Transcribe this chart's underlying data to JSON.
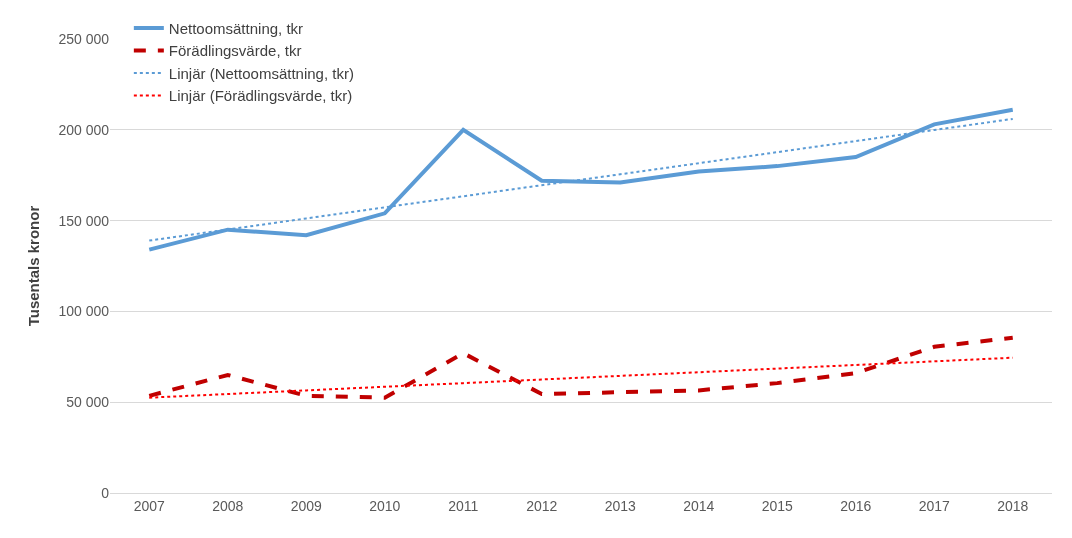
{
  "chart_data": {
    "type": "line",
    "ylabel": "Tusentals kronor",
    "categories": [
      "2007",
      "2008",
      "2009",
      "2010",
      "2011",
      "2012",
      "2013",
      "2014",
      "2015",
      "2016",
      "2017",
      "2018"
    ],
    "series": [
      {
        "name": "Nettoomsättning, tkr",
        "color": "#5b9bd5",
        "line_style": "solid",
        "values": [
          134000,
          145000,
          142000,
          154000,
          200000,
          172000,
          171000,
          177000,
          180000,
          185000,
          203000,
          211000
        ]
      },
      {
        "name": "Förädlingsvärde, tkr",
        "color": "#c00000",
        "line_style": "dashed",
        "values": [
          53500,
          65000,
          53500,
          52500,
          77000,
          54500,
          55500,
          56500,
          60500,
          66000,
          80500,
          85500
        ]
      },
      {
        "name": "Linjär (Nettoomsättning, tkr)",
        "color": "#5b9bd5",
        "line_style": "dotted",
        "values": [
          139000,
          145100,
          151200,
          157300,
          163400,
          169500,
          175500,
          181600,
          187700,
          193800,
          199900,
          206000
        ]
      },
      {
        "name": "Linjär (Förädlingsvärde, tkr)",
        "color": "#ff0000",
        "line_style": "dotted",
        "values": [
          52500,
          54500,
          56500,
          58500,
          60500,
          62500,
          64500,
          66500,
          68500,
          70500,
          72500,
          74500
        ]
      }
    ],
    "ylim": [
      0,
      250000
    ],
    "yticks": [
      {
        "value": 0,
        "label": "0"
      },
      {
        "value": 50000,
        "label": "50 000"
      },
      {
        "value": 100000,
        "label": "100 000"
      },
      {
        "value": 150000,
        "label": "150 000"
      },
      {
        "value": 200000,
        "label": "200 000"
      },
      {
        "value": 250000,
        "label": "250 000"
      }
    ],
    "grid": "y",
    "legend": "top left",
    "marker": "none"
  }
}
